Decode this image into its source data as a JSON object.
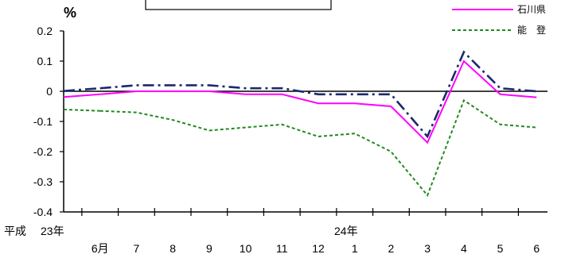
{
  "chart_data": {
    "type": "line",
    "ylabel": "%",
    "ylim": [
      -0.4,
      0.2
    ],
    "yticks": [
      "0.2",
      "0.1",
      "0",
      "-0.1",
      "-0.2",
      "-0.3",
      "-0.4"
    ],
    "ytick_values": [
      0.2,
      0.1,
      0,
      -0.1,
      -0.2,
      -0.3,
      -0.4
    ],
    "era_label": "平成",
    "year_labels": [
      "23年",
      "24年"
    ],
    "categories": [
      "6月",
      "7",
      "8",
      "9",
      "10",
      "11",
      "12",
      "1",
      "2",
      "3",
      "4",
      "5",
      "6"
    ],
    "legend_placement": "top-right",
    "series": [
      {
        "name": "",
        "color": "#1a2a6c",
        "dash": "14,5,3,5",
        "values": [
          0.01,
          0.02,
          0.02,
          0.02,
          0.01,
          0.01,
          -0.01,
          -0.01,
          -0.01,
          -0.15,
          0.13,
          0.01,
          0.0
        ]
      },
      {
        "name": "石川県",
        "color": "#ff00ff",
        "dash": "",
        "values": [
          -0.01,
          0.0,
          0.0,
          0.0,
          -0.01,
          -0.01,
          -0.04,
          -0.04,
          -0.05,
          -0.17,
          0.1,
          -0.01,
          -0.02
        ]
      },
      {
        "name": "能　登",
        "color": "#1f8a1f",
        "dash": "4,3",
        "values": [
          -0.065,
          -0.07,
          -0.095,
          -0.13,
          -0.12,
          -0.11,
          -0.15,
          -0.14,
          -0.2,
          -0.345,
          -0.03,
          -0.11,
          -0.12
        ]
      }
    ]
  }
}
